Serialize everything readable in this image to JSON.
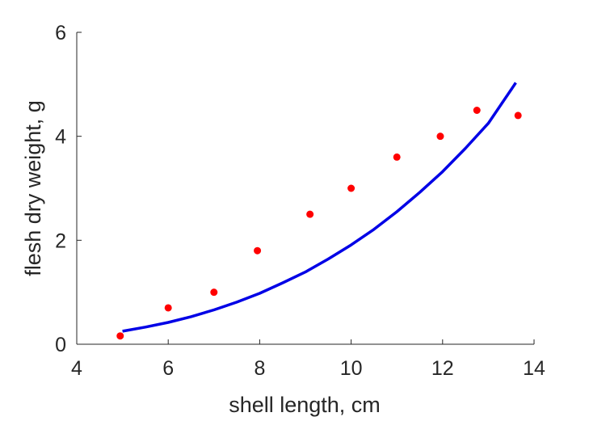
{
  "chart_data": {
    "type": "scatter",
    "title": "",
    "xlabel": "shell length, cm",
    "ylabel": "flesh dry weight, g",
    "xlim": [
      4,
      14
    ],
    "ylim": [
      0,
      6
    ],
    "xticks": [
      4,
      6,
      8,
      10,
      12,
      14
    ],
    "yticks": [
      0,
      2,
      4,
      6
    ],
    "grid": false,
    "legend": "none",
    "series": [
      {
        "kind": "points",
        "color": "#ff0000",
        "x": [
          4.95,
          6.0,
          7.0,
          7.95,
          9.1,
          10.0,
          11.0,
          11.95,
          12.75,
          13.65
        ],
        "y": [
          0.16,
          0.7,
          1.0,
          1.8,
          2.5,
          3.0,
          3.6,
          4.0,
          4.5,
          4.4
        ]
      },
      {
        "kind": "line",
        "color": "#0000e6",
        "x": [
          5.0,
          5.5,
          6.0,
          6.5,
          7.0,
          7.5,
          8.0,
          8.5,
          9.0,
          9.5,
          10.0,
          10.5,
          11.0,
          11.5,
          12.0,
          12.5,
          13.0,
          13.6
        ],
        "y": [
          0.25,
          0.33,
          0.42,
          0.53,
          0.66,
          0.81,
          0.98,
          1.18,
          1.39,
          1.64,
          1.91,
          2.21,
          2.55,
          2.92,
          3.32,
          3.77,
          4.25,
          5.03
        ]
      }
    ]
  }
}
